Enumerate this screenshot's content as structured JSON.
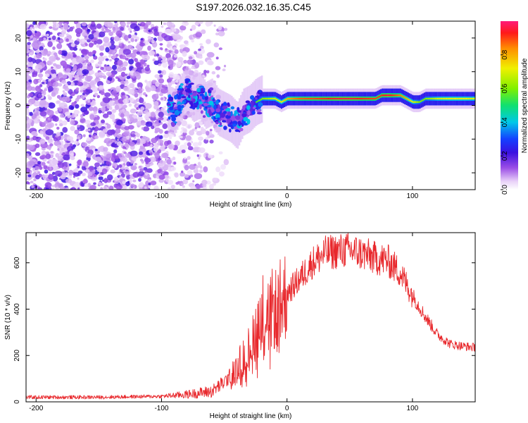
{
  "title": "S197.2026.032.16.35.C45",
  "colors": {
    "snr_line": "#e8282c",
    "frame": "#000000",
    "background": "#ffffff"
  },
  "chart_data": [
    {
      "type": "heatmap",
      "name": "spectrogram",
      "xlabel": "Height of straight line (km)",
      "ylabel": "Frequency (Hz)",
      "xlim": [
        -208,
        150
      ],
      "ylim": [
        -25,
        25
      ],
      "xticks": [
        -200,
        -100,
        0,
        100
      ],
      "xtick_labels": [
        "-200",
        "-100",
        "0",
        "100"
      ],
      "yticks": [
        20,
        10,
        0,
        -10,
        -20
      ],
      "ytick_labels": [
        "20",
        "10",
        "0",
        "-10",
        "-20"
      ],
      "colorbar": {
        "label": "Normalized spectral amplitude",
        "range": [
          0,
          1
        ],
        "ticks": [
          0.0,
          0.2,
          0.4,
          0.6,
          0.8
        ],
        "tick_labels": [
          "0.0",
          "0.2",
          "0.4",
          "0.6",
          "0.8"
        ]
      },
      "ridge": {
        "description": "frequency of the dominant narrow-band signal vs height",
        "x": [
          -95,
          -90,
          -85,
          -80,
          -75,
          -70,
          -65,
          -60,
          -55,
          -50,
          -45,
          -40,
          -35,
          -30,
          -25,
          -20,
          -15,
          -10,
          -5,
          0,
          5,
          10,
          20,
          30,
          40,
          50,
          60,
          70,
          75,
          80,
          85,
          90,
          95,
          100,
          105,
          110,
          115,
          120,
          130,
          140,
          150
        ],
        "freq": [
          -1,
          -2,
          2,
          5,
          2,
          3,
          0,
          1,
          -2,
          -3,
          -4,
          -6,
          -2,
          -1,
          1,
          2,
          2,
          2,
          1,
          2,
          2,
          2,
          2,
          2,
          2,
          2,
          2,
          2,
          3,
          3,
          3,
          3,
          2,
          1,
          1,
          2,
          2,
          2,
          2,
          2,
          2
        ],
        "amp": [
          0.22,
          0.25,
          0.28,
          0.25,
          0.3,
          0.32,
          0.3,
          0.35,
          0.38,
          0.3,
          0.35,
          0.3,
          0.4,
          0.45,
          0.55,
          0.62,
          0.65,
          0.7,
          0.72,
          0.8,
          0.85,
          0.88,
          0.9,
          0.92,
          0.95,
          0.95,
          0.92,
          0.9,
          0.92,
          0.95,
          0.9,
          0.85,
          0.8,
          0.7,
          0.6,
          0.6,
          0.65,
          0.7,
          0.72,
          0.72,
          0.7
        ]
      }
    },
    {
      "type": "line",
      "name": "snr",
      "xlabel": "Height of straight line (km)",
      "ylabel": "SNR (10 * v/v)",
      "xlim": [
        -208,
        150
      ],
      "ylim": [
        0,
        730
      ],
      "xticks": [
        -200,
        -100,
        0,
        100
      ],
      "xtick_labels": [
        "-200",
        "-100",
        "0",
        "100"
      ],
      "yticks": [
        0,
        200,
        400,
        600
      ],
      "ytick_labels": [
        "0",
        "200",
        "400",
        "600"
      ],
      "envelope": {
        "x": [
          -208,
          -150,
          -100,
          -80,
          -60,
          -50,
          -40,
          -35,
          -30,
          -25,
          -20,
          -15,
          -10,
          -5,
          0,
          10,
          20,
          30,
          40,
          50,
          60,
          70,
          80,
          90,
          100,
          110,
          120,
          130,
          140,
          150
        ],
        "y": [
          20,
          20,
          24,
          32,
          45,
          85,
          140,
          200,
          230,
          320,
          390,
          390,
          400,
          430,
          470,
          530,
          600,
          640,
          650,
          655,
          640,
          620,
          610,
          560,
          460,
          370,
          290,
          250,
          240,
          235
        ]
      }
    }
  ]
}
